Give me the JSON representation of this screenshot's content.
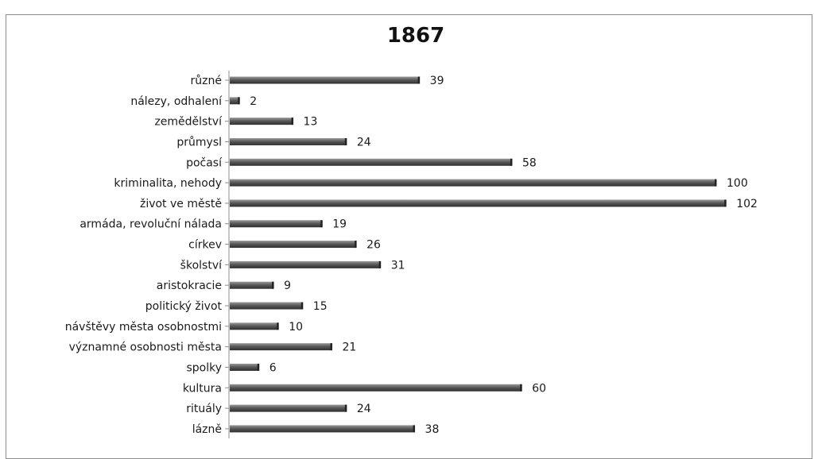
{
  "caption": "",
  "chart_data": {
    "type": "bar",
    "orientation": "horizontal",
    "title": "1867",
    "categories": [
      "různé",
      "nálezy, odhalení",
      "zemědělství",
      "průmysl",
      "počasí",
      "kriminalita, nehody",
      "život ve městě",
      "armáda, revoluční nálada",
      "církev",
      "školství",
      "aristokracie",
      "politický život",
      "návštěvy města osobnostmi",
      "významné osobnosti města",
      "spolky",
      "kultura",
      "rituály",
      "lázně"
    ],
    "values": [
      39,
      2,
      13,
      24,
      58,
      100,
      102,
      19,
      26,
      31,
      9,
      15,
      10,
      21,
      6,
      60,
      24,
      38
    ],
    "xlim": [
      0,
      102
    ],
    "bar_color": "#5a5a5a",
    "grid": false,
    "legend": false
  }
}
